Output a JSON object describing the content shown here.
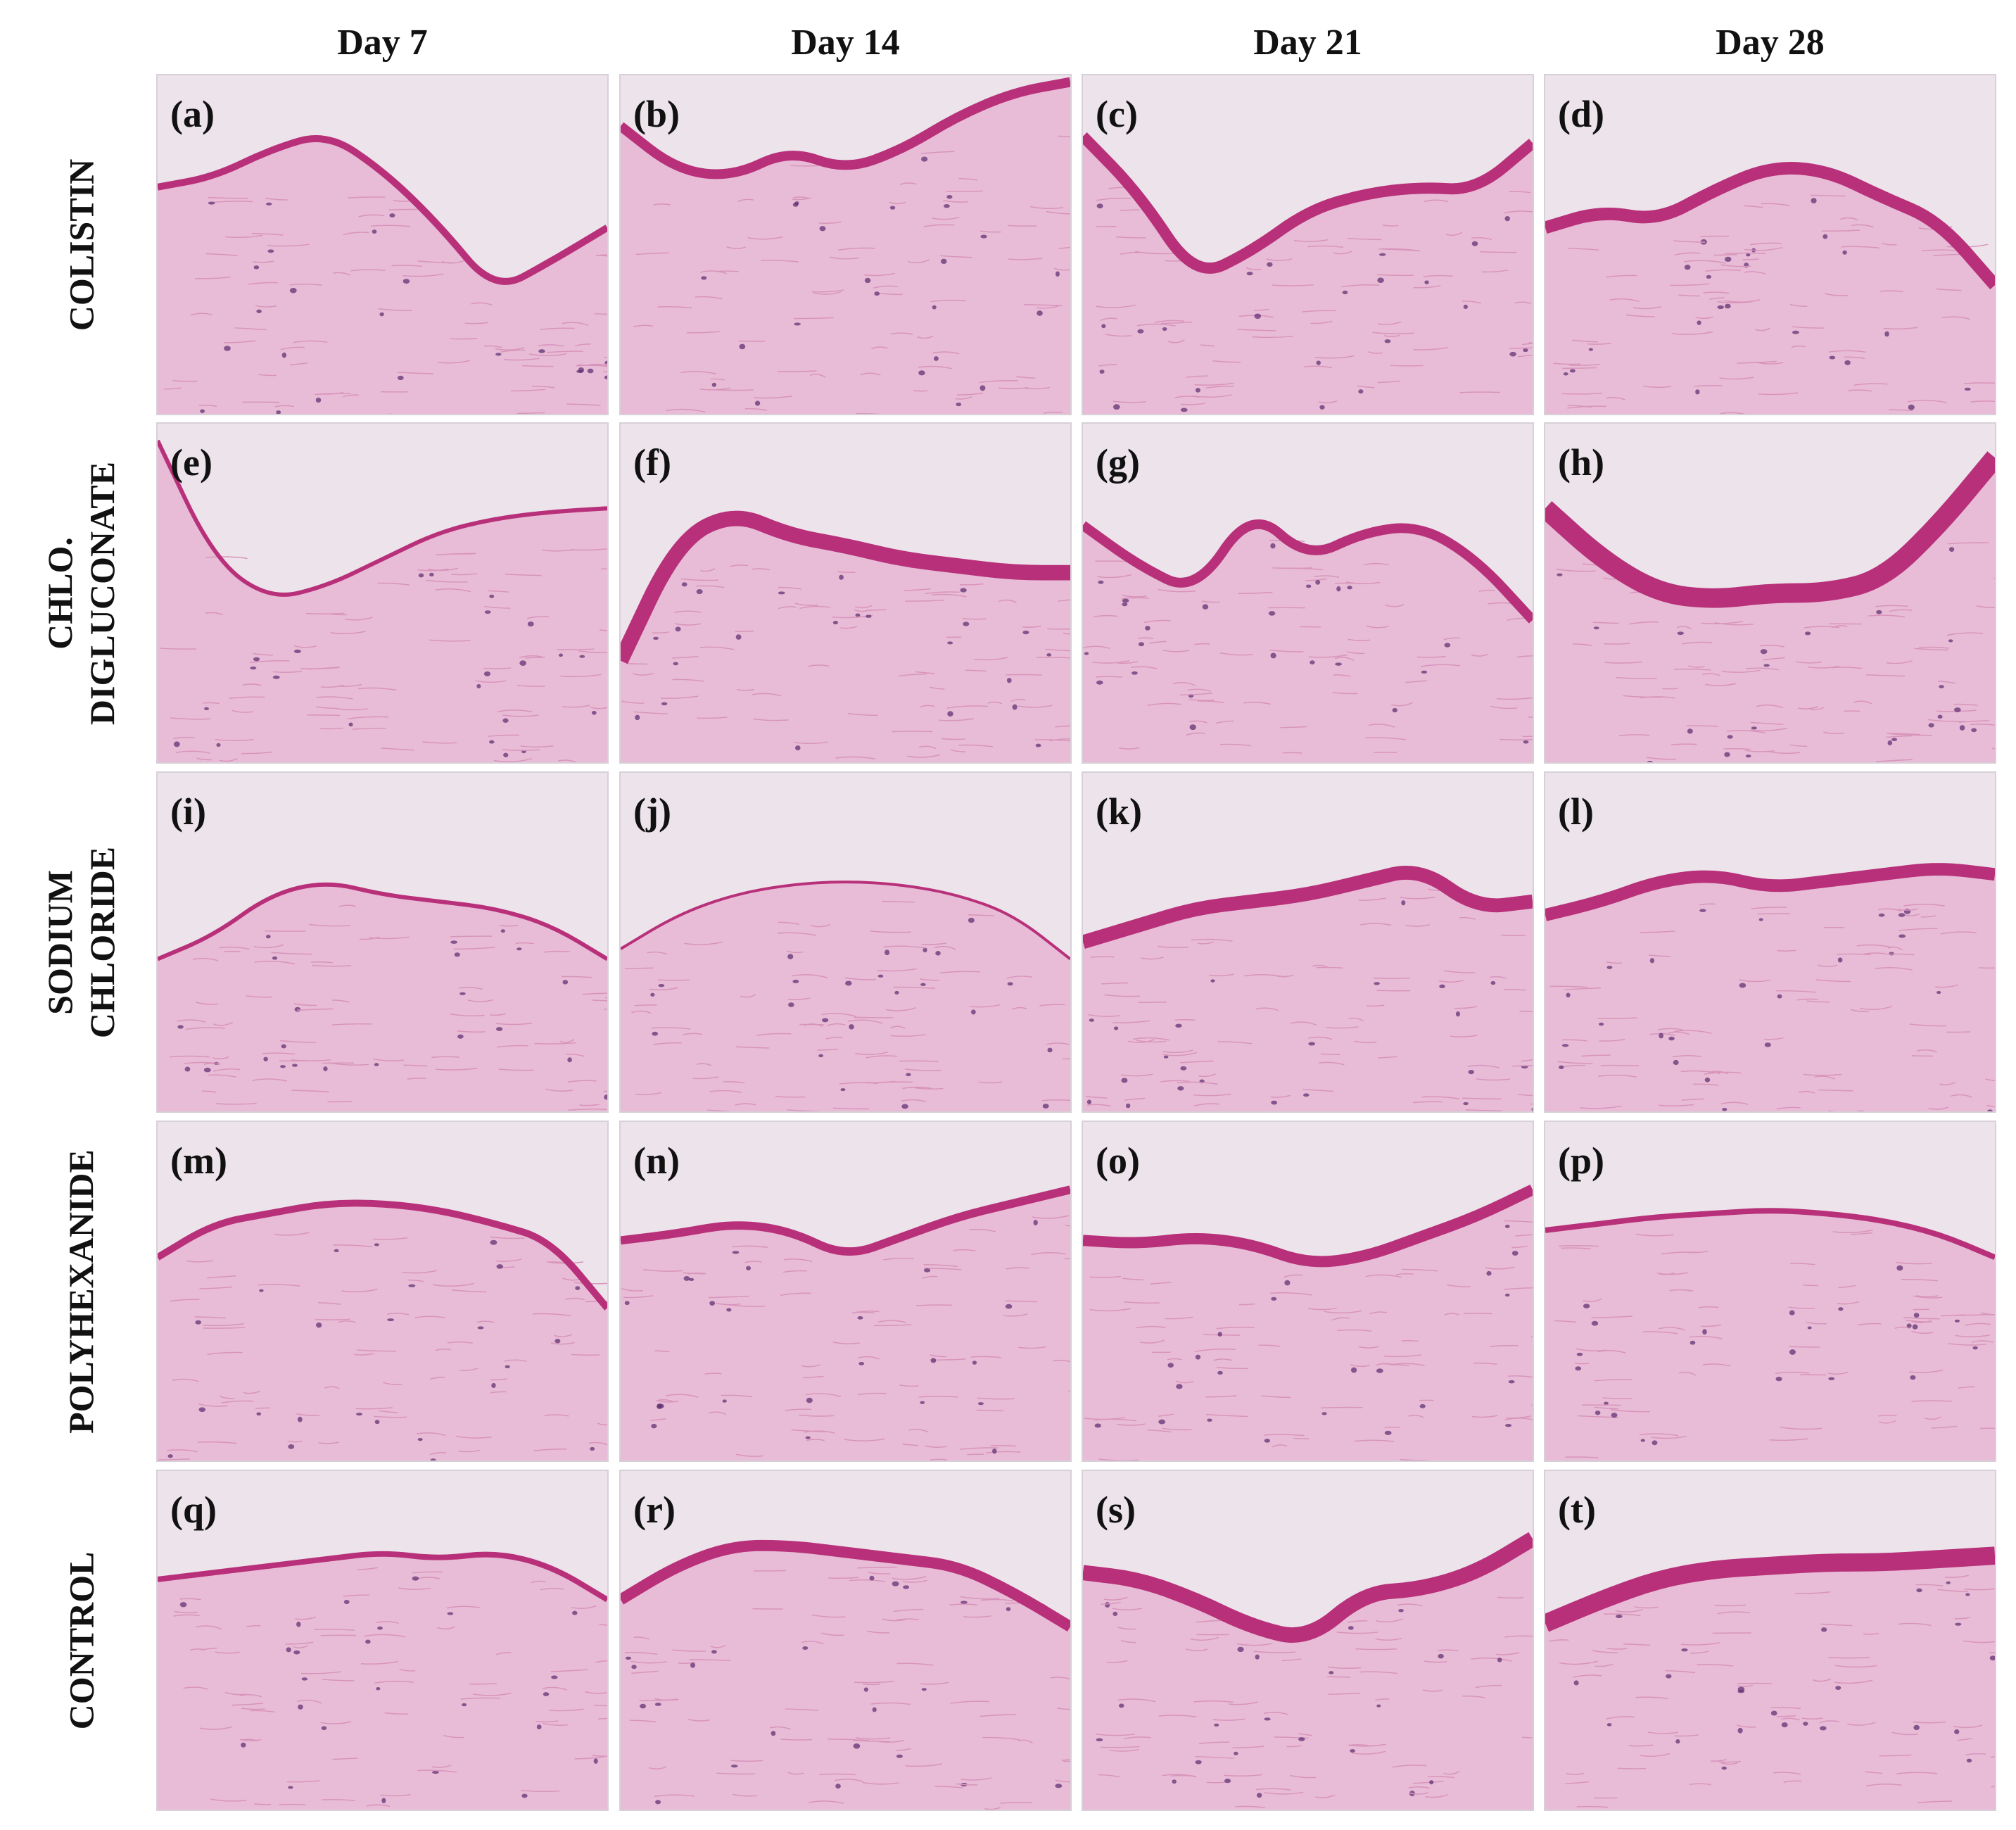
{
  "columns": [
    "Day 7",
    "Day 14",
    "Day 21",
    "Day 28"
  ],
  "rows": [
    {
      "label_lines": [
        "COLISTIN"
      ],
      "panels": [
        "(a)",
        "(b)",
        "(c)",
        "(d)"
      ]
    },
    {
      "label_lines": [
        "CHLO.",
        "DIGLUCONATE"
      ],
      "panels": [
        "(e)",
        "(f)",
        "(g)",
        "(h)"
      ]
    },
    {
      "label_lines": [
        "SODIUM",
        "CHLORIDE"
      ],
      "panels": [
        "(i)",
        "(j)",
        "(k)",
        "(l)"
      ]
    },
    {
      "label_lines": [
        "POLYHEXANIDE"
      ],
      "panels": [
        "(m)",
        "(n)",
        "(o)",
        "(p)"
      ]
    },
    {
      "label_lines": [
        "CONTROL"
      ],
      "panels": [
        "(q)",
        "(r)",
        "(s)",
        "(t)"
      ]
    }
  ],
  "colors": {
    "background_slide": "#ede3ea",
    "dermis": "#e8bcd6",
    "epidermis": "#b8307a",
    "nuclei": "#5a2a6e"
  }
}
